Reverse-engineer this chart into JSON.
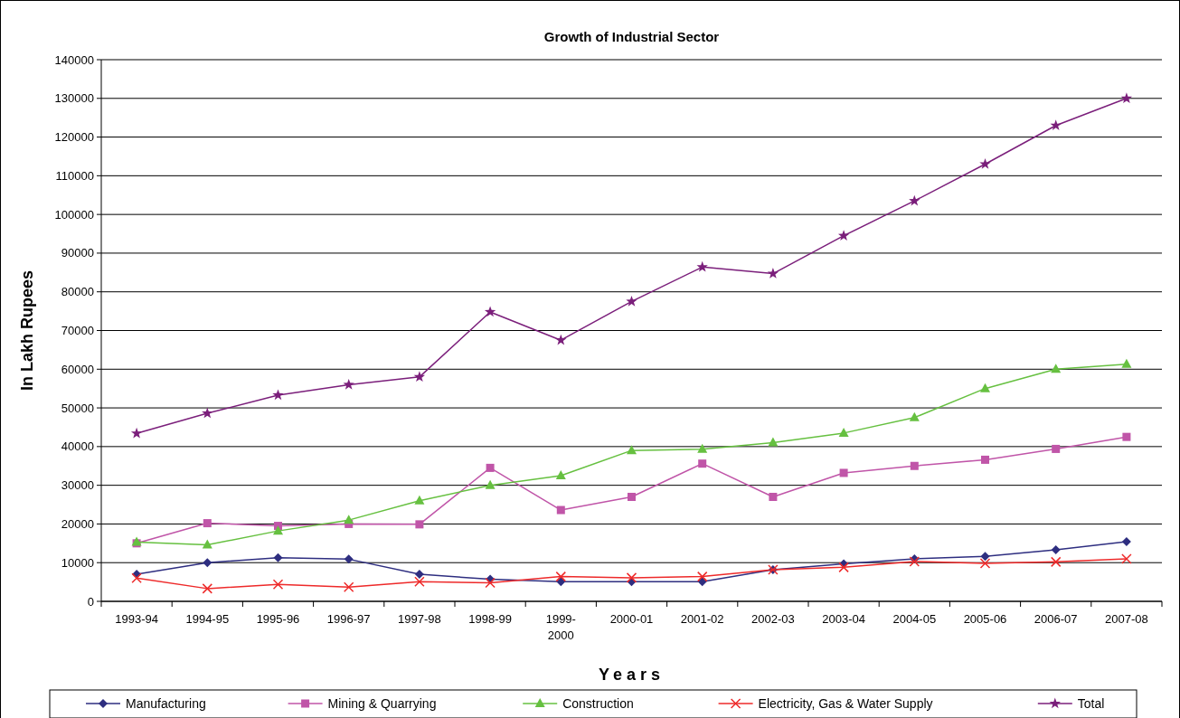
{
  "chart_data": {
    "type": "line",
    "title": "Growth of Industrial Sector",
    "xlabel": "Years",
    "ylabel": "In Lakh Rupees",
    "categories": [
      "1993-94",
      "1994-95",
      "1995-96",
      "1996-97",
      "1997-98",
      "1998-99",
      "1999-2000",
      "2000-01",
      "2001-02",
      "2002-03",
      "2003-04",
      "2004-05",
      "2005-06",
      "2006-07",
      "2007-08"
    ],
    "ylim": [
      0,
      140000
    ],
    "yticks": [
      0,
      10000,
      20000,
      30000,
      40000,
      50000,
      60000,
      70000,
      80000,
      90000,
      100000,
      110000,
      120000,
      130000,
      140000
    ],
    "grid": "y",
    "legend": "bottom",
    "series": [
      {
        "name": "Manufacturing",
        "color": "#2e2e80",
        "marker": "diamond",
        "values": [
          7000,
          10000,
          11300,
          10900,
          7000,
          5700,
          5100,
          5100,
          5100,
          8200,
          9700,
          11000,
          11600,
          13300,
          15400
        ]
      },
      {
        "name": "Mining & Quarrying",
        "color": "#c055a8",
        "marker": "square",
        "values": [
          15000,
          20200,
          19500,
          20000,
          19900,
          34500,
          23600,
          27000,
          35600,
          27000,
          33200,
          35000,
          36600,
          39400,
          42500
        ]
      },
      {
        "name": "Construction",
        "color": "#66c040",
        "marker": "triangle",
        "values": [
          15300,
          14600,
          18200,
          21000,
          26000,
          30000,
          32500,
          39000,
          39300,
          41000,
          43500,
          47500,
          55000,
          60000,
          61300
        ]
      },
      {
        "name": "Electricity, Gas & Water Supply",
        "color": "#ee2a2a",
        "marker": "cross",
        "values": [
          6000,
          3300,
          4400,
          3700,
          5100,
          4800,
          6400,
          6100,
          6400,
          8200,
          8800,
          10300,
          9800,
          10200,
          11000
        ]
      },
      {
        "name": "Total",
        "color": "#7b1f7b",
        "marker": "star",
        "values": [
          43400,
          48600,
          53300,
          56000,
          58000,
          74800,
          67500,
          77500,
          86400,
          84700,
          94500,
          103500,
          113000,
          123000,
          130000
        ]
      }
    ]
  }
}
